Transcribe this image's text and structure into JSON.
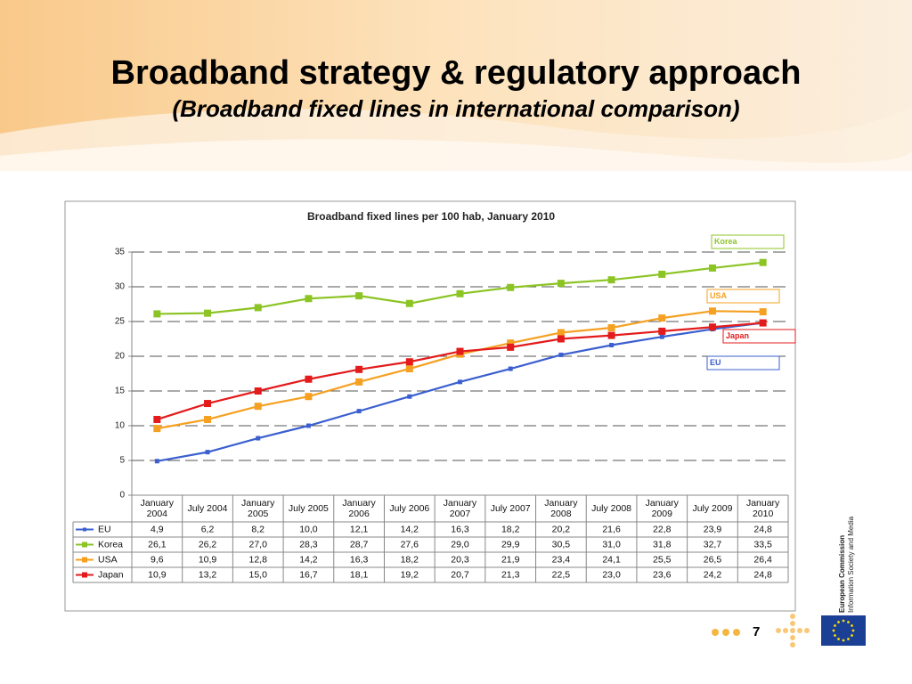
{
  "slide": {
    "title": "Broadband strategy & regulatory approach",
    "subtitle": "(Broadband fixed lines in international comparison)",
    "page_number": "7",
    "org_name": "European Commission",
    "org_unit": "Information Society and Media"
  },
  "chart_data": {
    "type": "line",
    "title": "Broadband fixed lines per 100 hab, January 2010",
    "categories": [
      "January 2004",
      "July 2004",
      "January 2005",
      "July 2005",
      "January 2006",
      "July 2006",
      "January 2007",
      "July 2007",
      "January 2008",
      "July 2008",
      "January 2009",
      "July 2009",
      "January 2010"
    ],
    "series": [
      {
        "name": "EU",
        "color": "#3b5fcf",
        "values": [
          4.9,
          6.2,
          8.2,
          10,
          12.1,
          14.2,
          16.3,
          18.2,
          20.2,
          21.6,
          22.8,
          23.9,
          24.8
        ],
        "value_labels": [
          "4,9",
          "6,2",
          "8,2",
          "10,0",
          "12,1",
          "14,2",
          "16,3",
          "18,2",
          "20,2",
          "21,6",
          "22,8",
          "23,9",
          "24,8"
        ]
      },
      {
        "name": "Korea",
        "color": "#8cc424",
        "values": [
          26.1,
          26.2,
          27,
          28.3,
          28.7,
          27.6,
          29,
          29.9,
          30.5,
          31,
          31.8,
          32.7,
          33.5
        ],
        "value_labels": [
          "26,1",
          "26,2",
          "27,0",
          "28,3",
          "28,7",
          "27,6",
          "29,0",
          "29,9",
          "30,5",
          "31,0",
          "31,8",
          "32,7",
          "33,5"
        ]
      },
      {
        "name": "USA",
        "color": "#f5a020",
        "values": [
          9.6,
          10.9,
          12.8,
          14.2,
          16.3,
          18.2,
          20.3,
          21.9,
          23.4,
          24.1,
          25.5,
          26.5,
          26.4
        ],
        "value_labels": [
          "9,6",
          "10,9",
          "12,8",
          "14,2",
          "16,3",
          "18,2",
          "20,3",
          "21,9",
          "23,4",
          "24,1",
          "25,5",
          "26,5",
          "26,4"
        ]
      },
      {
        "name": "Japan",
        "color": "#e31b1b",
        "values": [
          10.9,
          13.2,
          15,
          16.7,
          18.1,
          19.2,
          20.7,
          21.3,
          22.5,
          23,
          23.6,
          24.2,
          24.8
        ],
        "value_labels": [
          "10,9",
          "13,2",
          "15,0",
          "16,7",
          "18,1",
          "19,2",
          "20,7",
          "21,3",
          "22,5",
          "23,0",
          "23,6",
          "24,2",
          "24,8"
        ]
      }
    ],
    "ylim": [
      0,
      35
    ],
    "yticks": [
      0,
      5,
      10,
      15,
      20,
      25,
      30,
      35
    ],
    "grid": true
  }
}
